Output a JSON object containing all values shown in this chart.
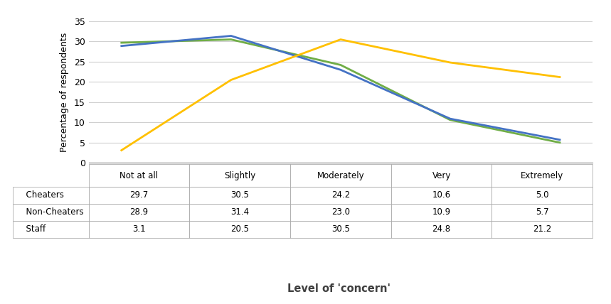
{
  "categories": [
    "Not at all",
    "Slightly",
    "Moderately",
    "Very",
    "Extremely"
  ],
  "cheaters": [
    29.7,
    30.5,
    24.2,
    10.6,
    5.0
  ],
  "non_cheaters": [
    28.9,
    31.4,
    23.0,
    10.9,
    5.7
  ],
  "staff": [
    3.1,
    20.5,
    30.5,
    24.8,
    21.2
  ],
  "cheaters_color": "#70ad47",
  "non_cheaters_color": "#4472c4",
  "staff_color": "#ffc000",
  "ylabel": "Percentage of respondents",
  "xlabel": "Level of 'concern'",
  "ylim": [
    0,
    35
  ],
  "yticks": [
    0,
    5,
    10,
    15,
    20,
    25,
    30,
    35
  ],
  "legend_labels": [
    "Cheaters",
    "Non-Cheaters",
    "Staff"
  ],
  "line_width": 2.0,
  "figsize": [
    8.59,
    4.28
  ],
  "dpi": 100
}
